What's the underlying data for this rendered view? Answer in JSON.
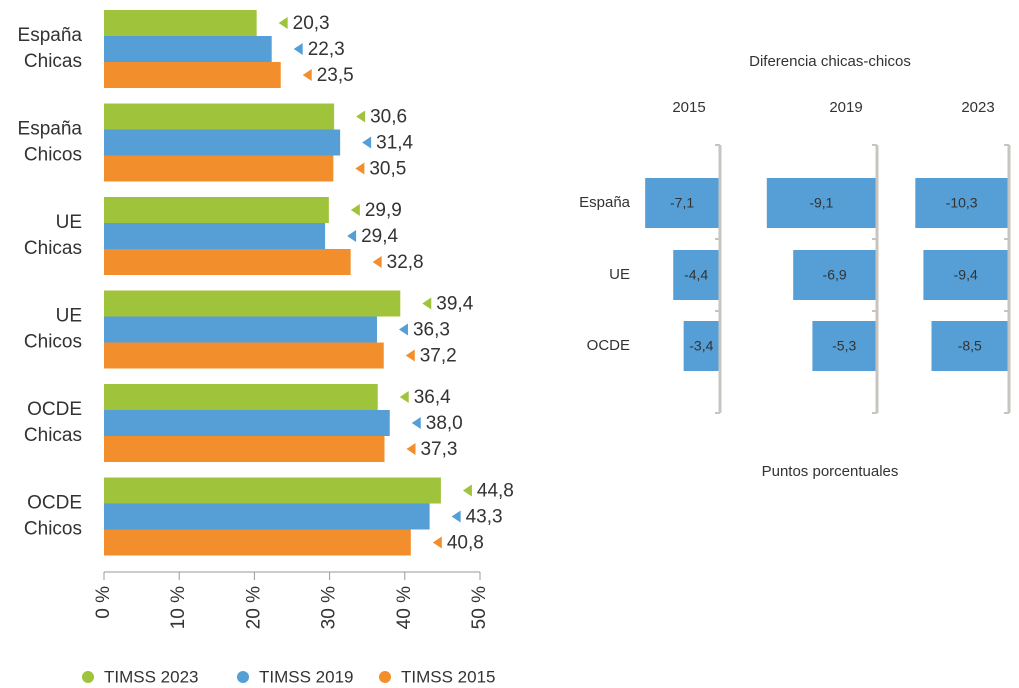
{
  "chart_data": [
    {
      "type": "bar",
      "orientation": "horizontal",
      "categories": [
        [
          "España",
          "Chicas"
        ],
        [
          "España",
          "Chicos"
        ],
        [
          "UE",
          "Chicas"
        ],
        [
          "UE",
          "Chicos"
        ],
        [
          "OCDE",
          "Chicas"
        ],
        [
          "OCDE",
          "Chicos"
        ]
      ],
      "series": [
        {
          "name": "TIMSS 2023",
          "color": "#9fc33a",
          "values": [
            20.3,
            30.6,
            29.9,
            39.4,
            36.4,
            44.8
          ],
          "value_labels": [
            "20,3",
            "30,6",
            "29,9",
            "39,4",
            "36,4",
            "44,8"
          ]
        },
        {
          "name": "TIMSS 2019",
          "color": "#559fd6",
          "values": [
            22.3,
            31.4,
            29.4,
            36.3,
            38.0,
            43.3
          ],
          "value_labels": [
            "22,3",
            "31,4",
            "29,4",
            "36,3",
            "38,0",
            "43,3"
          ]
        },
        {
          "name": "TIMSS 2015",
          "color": "#f28f2c",
          "values": [
            23.5,
            30.5,
            32.8,
            37.2,
            37.3,
            40.8
          ],
          "value_labels": [
            "23,5",
            "30,5",
            "32,8",
            "37,2",
            "37,3",
            "40,8"
          ]
        }
      ],
      "xlim": [
        0,
        50
      ],
      "xticks": [
        {
          "value": 0,
          "label": "0 %"
        },
        {
          "value": 10,
          "label": "10 %"
        },
        {
          "value": 20,
          "label": "20 %"
        },
        {
          "value": 30,
          "label": "30 %"
        },
        {
          "value": 40,
          "label": "40 %"
        },
        {
          "value": 50,
          "label": "50 %"
        }
      ],
      "legend": "bottom"
    },
    {
      "type": "bar",
      "orientation": "horizontal",
      "title": "Diferencia chicas-chicos",
      "xlabel": "Puntos porcentuales",
      "categories": [
        "España",
        "UE",
        "OCDE"
      ],
      "color": "#559fd6",
      "xlim": [
        -10,
        0
      ],
      "panels": [
        {
          "title": "2015",
          "values": [
            -7.1,
            -4.4,
            -3.4
          ],
          "value_labels": [
            "-7,1",
            "-4,4",
            "-3,4"
          ]
        },
        {
          "title": "2019",
          "values": [
            -9.1,
            -6.9,
            -5.3
          ],
          "value_labels": [
            "-9,1",
            "-6,9",
            "-5,3"
          ]
        },
        {
          "title": "2023",
          "values": [
            -10.3,
            -9.4,
            -8.5
          ],
          "value_labels": [
            "-10,3",
            "-9,4",
            "-8,5"
          ]
        }
      ]
    }
  ]
}
